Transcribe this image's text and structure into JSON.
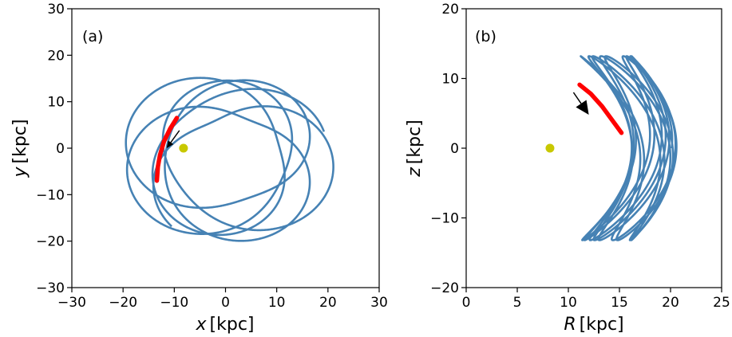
{
  "chart_data": [
    {
      "type": "line",
      "panel_label": "(a)",
      "xlabel_var": "x",
      "xlabel_unit": "[kpc]",
      "ylabel_var": "y",
      "ylabel_unit": "[kpc]",
      "xlim": [
        -30,
        30
      ],
      "ylim": [
        -30,
        30
      ],
      "xticks": [
        -30,
        -20,
        -10,
        0,
        10,
        20,
        30
      ],
      "yticks": [
        -30,
        -20,
        -10,
        0,
        10,
        20,
        30
      ],
      "xtick_labels": [
        "−30",
        "−20",
        "−10",
        "0",
        "10",
        "20",
        "30"
      ],
      "ytick_labels": [
        "−30",
        "−20",
        "−10",
        "0",
        "10",
        "20",
        "30"
      ],
      "grid": false,
      "orbit_rosette": {
        "petals": 5,
        "ecc_amplitude": 0.28,
        "mean_radius": 15.0,
        "precession_per_orbit_deg": 14
      },
      "marker": {
        "x": -8.2,
        "y": 0.0,
        "color": "#c8c800"
      },
      "highlight_segment": {
        "points": [
          [
            -9.5,
            6.5
          ],
          [
            -10.8,
            4.2
          ],
          [
            -12.0,
            1.5
          ],
          [
            -12.8,
            -1.5
          ],
          [
            -13.2,
            -4.0
          ],
          [
            -13.4,
            -7.0
          ]
        ],
        "color": "#ff0000"
      },
      "arrow": {
        "from": [
          -9.0,
          3.8
        ],
        "to": [
          -11.5,
          0.0
        ],
        "color": "#000000"
      },
      "series_color": "#4682b4"
    },
    {
      "type": "line",
      "panel_label": "(b)",
      "xlabel_var": "R",
      "xlabel_unit": "[kpc]",
      "ylabel_var": "z",
      "ylabel_unit": "[kpc]",
      "xlim": [
        0,
        25
      ],
      "ylim": [
        -20,
        20
      ],
      "xticks": [
        0,
        5,
        10,
        15,
        20,
        25
      ],
      "yticks": [
        -20,
        -10,
        0,
        10,
        20
      ],
      "xtick_labels": [
        "0",
        "5",
        "10",
        "15",
        "20",
        "25"
      ],
      "ytick_labels": [
        "−20",
        "−10",
        "0",
        "10",
        "20"
      ],
      "grid": false,
      "meridional_orbit": {
        "R_min": 11.2,
        "R_max": 20.6,
        "z_max": 13.2,
        "R_at_zmax": 16.3
      },
      "marker": {
        "x": 8.2,
        "y": 0.0,
        "color": "#c8c800"
      },
      "highlight_segment": {
        "points": [
          [
            11.1,
            9.1
          ],
          [
            12.2,
            7.8
          ],
          [
            13.3,
            6.0
          ],
          [
            14.3,
            4.0
          ],
          [
            15.2,
            2.2
          ]
        ],
        "color": "#ff0000"
      },
      "arrow": {
        "from": [
          10.5,
          8.0
        ],
        "to": [
          12.0,
          4.8
        ],
        "color": "#000000"
      },
      "series_color": "#4682b4"
    }
  ]
}
